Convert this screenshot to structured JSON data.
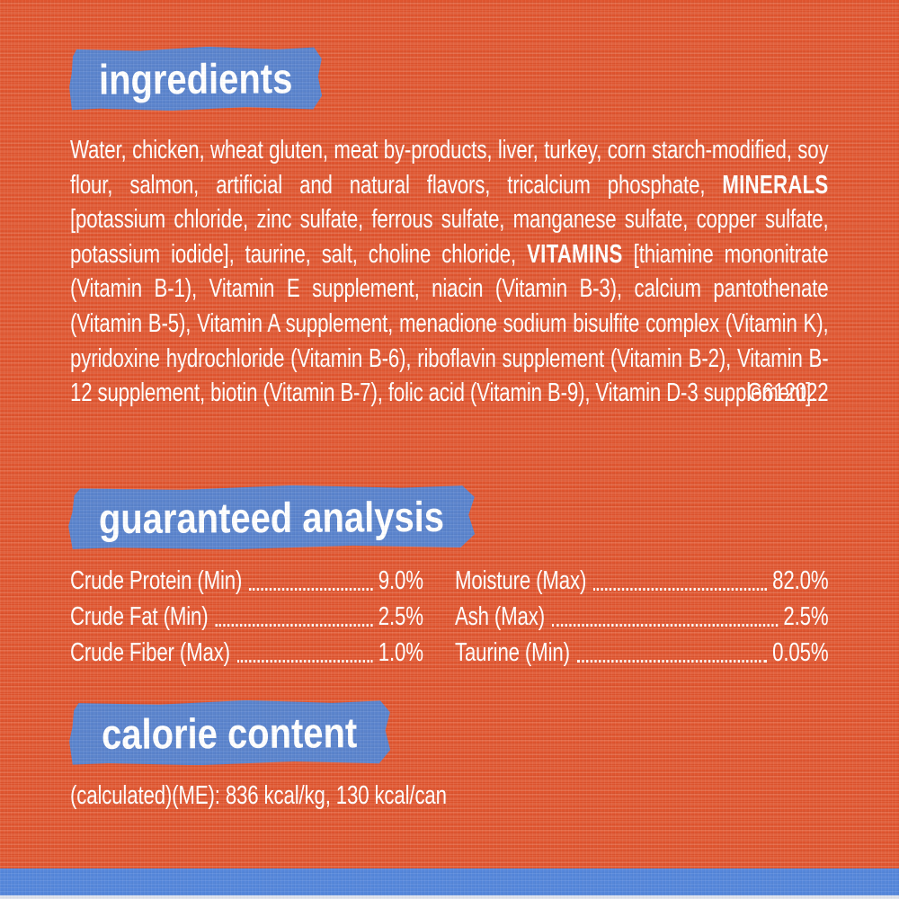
{
  "page": {
    "background_color": "#e0552f",
    "banner_color": "#5b84cd",
    "footer_bar_color": "#5587db",
    "text_color": "#ffffff"
  },
  "sections": {
    "ingredients": {
      "heading": "ingredients",
      "body_segments": [
        {
          "text": "Water, chicken, wheat gluten, meat by-products, liver, turkey, corn starch-modified, soy flour, salmon, artificial and natural flavors, tricalcium phosphate, ",
          "bold": false
        },
        {
          "text": "MINERALS",
          "bold": true
        },
        {
          "text": " [potassium chloride, zinc sulfate, ferrous sulfate, manganese sulfate, copper sulfate, potassium iodide], taurine, salt, choline chloride, ",
          "bold": false
        },
        {
          "text": "VITAMINS",
          "bold": true
        },
        {
          "text": " [thiamine mononitrate (Vitamin B-1), Vitamin E supplement, niacin (Vitamin B-3), calcium pantothenate (Vitamin B-5), Vitamin A supplement, menadione sodium bisulfite complex (Vitamin K), pyridoxine hydrochloride (Vitamin B-6), riboflavin supplement (Vitamin B-2), Vitamin B-12 supplement, biotin (Vitamin B-7), folic acid (Vitamin B-9), Vitamin D-3 supplement].",
          "bold": false
        }
      ],
      "code": "G612022"
    },
    "guaranteed_analysis": {
      "heading": "guaranteed analysis",
      "left_rows": [
        {
          "label": "Crude Protein (Min)",
          "value": "9.0%"
        },
        {
          "label": "Crude Fat (Min)",
          "value": "2.5%"
        },
        {
          "label": "Crude Fiber (Max)",
          "value": "1.0%"
        }
      ],
      "right_rows": [
        {
          "label": "Moisture (Max)",
          "value": "82.0%"
        },
        {
          "label": "Ash (Max)",
          "value": "2.5%"
        },
        {
          "label": "Taurine (Min)",
          "value": "0.05%"
        }
      ]
    },
    "calorie_content": {
      "heading": "calorie content",
      "body": "(calculated)(ME): 836 kcal/kg, 130 kcal/can"
    }
  }
}
